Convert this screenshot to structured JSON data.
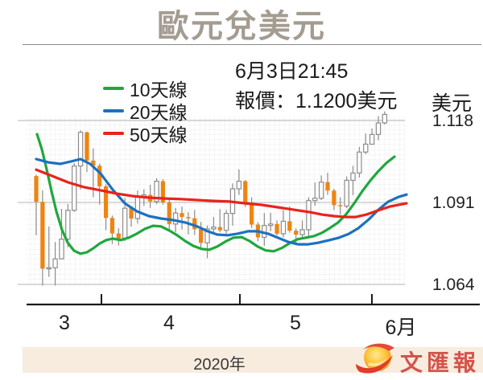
{
  "title": "歐元兌美元",
  "info": {
    "line1": "6月3日21:45",
    "line2": "報價：1.1200美元"
  },
  "unit_label": "美元",
  "legend": {
    "items": [
      {
        "label": "10天線",
        "color": "#1fa83c"
      },
      {
        "label": "20天線",
        "color": "#1c70c0"
      },
      {
        "label": "50天線",
        "color": "#e8231d"
      }
    ]
  },
  "y_axis": {
    "labels": [
      "1.118",
      "1.091",
      "1.064"
    ]
  },
  "x_axis": {
    "labels": [
      "3",
      "4",
      "5",
      "6月"
    ]
  },
  "footer": {
    "year": "2020年",
    "logo_text": "文匯報"
  },
  "chart_data": {
    "type": "candlestick",
    "title": "EUR/USD daily with 10/20/50-day moving averages",
    "ylabel": "USD per EUR",
    "ylim": [
      1.058,
      1.122
    ],
    "yticks": [
      1.118,
      1.091,
      1.064
    ],
    "xtick_month_boundaries": [
      "4/1",
      "5/1",
      "6/1"
    ],
    "colors": {
      "up": "#ffffff",
      "up_border": "#8c8c8c",
      "down": "#ee8411",
      "wick": "#8c8c8c",
      "ma10": "#1fa83c",
      "ma20": "#1c70c0",
      "ma50": "#e8231d",
      "grid_fine": "#ebebeb",
      "grid_major": "#b5b5b5",
      "axis": "#1a1a1a"
    },
    "candles": [
      [
        "3/18",
        1.0997,
        1.1001,
        1.0802,
        1.0912
      ],
      [
        "3/19",
        1.0912,
        1.095,
        1.0636,
        1.0692
      ],
      [
        "3/20",
        1.0692,
        1.0831,
        1.0665,
        1.0695
      ],
      [
        "3/23",
        1.0695,
        1.078,
        1.0636,
        1.0724
      ],
      [
        "3/24",
        1.0724,
        1.0889,
        1.0723,
        1.0789
      ],
      [
        "3/25",
        1.0789,
        1.0905,
        1.0762,
        1.0884
      ],
      [
        "3/26",
        1.0884,
        1.104,
        1.0879,
        1.103
      ],
      [
        "3/27",
        1.103,
        1.1148,
        1.0953,
        1.1141
      ],
      [
        "3/30",
        1.1141,
        1.1144,
        1.101,
        1.1048
      ],
      [
        "3/31",
        1.1048,
        1.1088,
        1.0927,
        1.1031
      ],
      [
        "4/1",
        1.1031,
        1.1038,
        1.0903,
        1.0963
      ],
      [
        "4/2",
        1.0963,
        1.097,
        1.0819,
        1.0859
      ],
      [
        "4/3",
        1.0859,
        1.0867,
        1.0773,
        1.0808
      ],
      [
        "4/6",
        1.0808,
        1.0825,
        1.0768,
        1.0791
      ],
      [
        "4/7",
        1.0791,
        1.0925,
        1.0783,
        1.0891
      ],
      [
        "4/8",
        1.0891,
        1.0898,
        1.083,
        1.0857
      ],
      [
        "4/9",
        1.0857,
        1.095,
        1.084,
        1.093
      ],
      [
        "4/10",
        1.093,
        1.0953,
        1.0899,
        1.0935
      ],
      [
        "4/13",
        1.0935,
        1.0968,
        1.0892,
        1.0913
      ],
      [
        "4/14",
        1.0913,
        1.099,
        1.0905,
        1.098
      ],
      [
        "4/15",
        1.098,
        1.0987,
        1.0903,
        1.091
      ],
      [
        "4/16",
        1.091,
        1.092,
        1.0816,
        1.0839
      ],
      [
        "4/17",
        1.0839,
        1.0892,
        1.0812,
        1.0875
      ],
      [
        "4/20",
        1.0875,
        1.0897,
        1.0821,
        1.0862
      ],
      [
        "4/21",
        1.0862,
        1.0878,
        1.0805,
        1.0858
      ],
      [
        "4/22",
        1.0858,
        1.0885,
        1.0803,
        1.0822
      ],
      [
        "4/23",
        1.0822,
        1.0846,
        1.0756,
        1.0777
      ],
      [
        "4/24",
        1.0777,
        1.0834,
        1.0726,
        1.0823
      ],
      [
        "4/27",
        1.0823,
        1.0862,
        1.081,
        1.0829
      ],
      [
        "4/28",
        1.0829,
        1.0888,
        1.0812,
        1.0818
      ],
      [
        "4/29",
        1.0818,
        1.0885,
        1.0807,
        1.0874
      ],
      [
        "4/30",
        1.0874,
        1.0973,
        1.0833,
        1.0955
      ],
      [
        "5/1",
        1.0955,
        1.1019,
        1.0935,
        1.098
      ],
      [
        "5/4",
        1.098,
        1.0984,
        1.0895,
        1.0907
      ],
      [
        "5/5",
        1.0907,
        1.0927,
        1.0826,
        1.0837
      ],
      [
        "5/6",
        1.0837,
        1.0845,
        1.0782,
        1.0795
      ],
      [
        "5/7",
        1.0795,
        1.0875,
        1.0767,
        1.0834
      ],
      [
        "5/8",
        1.0834,
        1.0876,
        1.0815,
        1.0839
      ],
      [
        "5/11",
        1.0839,
        1.0851,
        1.0801,
        1.0807
      ],
      [
        "5/12",
        1.0807,
        1.0885,
        1.0795,
        1.0848
      ],
      [
        "5/13",
        1.0848,
        1.0897,
        1.081,
        1.0817
      ],
      [
        "5/14",
        1.0817,
        1.0825,
        1.0774,
        1.0804
      ],
      [
        "5/15",
        1.0804,
        1.0851,
        1.0789,
        1.082
      ],
      [
        "5/18",
        1.082,
        1.0927,
        1.0797,
        1.0916
      ],
      [
        "5/19",
        1.0916,
        1.0976,
        1.0899,
        1.0924
      ],
      [
        "5/20",
        1.0924,
        1.0999,
        1.0918,
        1.0977
      ],
      [
        "5/21",
        1.0977,
        1.1008,
        1.0935,
        1.0949
      ],
      [
        "5/22",
        1.0949,
        1.0955,
        1.0885,
        1.0901
      ],
      [
        "5/25",
        1.0901,
        1.0927,
        1.087,
        1.0898
      ],
      [
        "5/26",
        1.0898,
        1.0996,
        1.0891,
        1.0983
      ],
      [
        "5/27",
        1.0983,
        1.1031,
        1.0934,
        1.1007
      ],
      [
        "5/28",
        1.1007,
        1.1093,
        1.0992,
        1.1076
      ],
      [
        "5/29",
        1.1076,
        1.1137,
        1.1069,
        1.1102
      ],
      [
        "6/1",
        1.1102,
        1.1154,
        1.1101,
        1.1134
      ],
      [
        "6/2",
        1.1134,
        1.1195,
        1.1115,
        1.1172
      ],
      [
        "6/3",
        1.1172,
        1.121,
        1.1167,
        1.12
      ]
    ],
    "ma_series": [
      {
        "name": "10天線",
        "color": "#1fa83c",
        "points": [
          [
            46,
            1.1135
          ],
          [
            52,
            1.1085
          ],
          [
            58,
            1.1019
          ],
          [
            64,
            1.0947
          ],
          [
            70,
            1.0881
          ],
          [
            77,
            1.082
          ],
          [
            84,
            1.0778
          ],
          [
            92,
            1.0751
          ],
          [
            100,
            1.0741
          ],
          [
            108,
            1.0746
          ],
          [
            116,
            1.0759
          ],
          [
            124,
            1.0775
          ],
          [
            132,
            1.0786
          ],
          [
            140,
            1.0791
          ],
          [
            150,
            1.0786
          ],
          [
            160,
            1.0794
          ],
          [
            170,
            1.0807
          ],
          [
            180,
            1.0823
          ],
          [
            190,
            1.0833
          ],
          [
            200,
            1.0831
          ],
          [
            210,
            1.0818
          ],
          [
            220,
            1.0802
          ],
          [
            230,
            1.0783
          ],
          [
            240,
            1.0767
          ],
          [
            250,
            1.0757
          ],
          [
            260,
            1.0754
          ],
          [
            270,
            1.0765
          ],
          [
            280,
            1.0781
          ],
          [
            290,
            1.0794
          ],
          [
            300,
            1.0796
          ],
          [
            310,
            1.0783
          ],
          [
            320,
            1.0765
          ],
          [
            330,
            1.0752
          ],
          [
            340,
            1.0749
          ],
          [
            350,
            1.076
          ],
          [
            360,
            1.0776
          ],
          [
            370,
            1.0789
          ],
          [
            380,
            1.0794
          ],
          [
            390,
            1.0799
          ],
          [
            400,
            1.081
          ],
          [
            410,
            1.0826
          ],
          [
            420,
            1.0844
          ],
          [
            430,
            1.0871
          ],
          [
            440,
            1.0907
          ],
          [
            450,
            1.0947
          ],
          [
            460,
            1.0982
          ],
          [
            470,
            1.1013
          ],
          [
            480,
            1.104
          ],
          [
            490,
            1.1061
          ]
        ]
      },
      {
        "name": "20天線",
        "color": "#1c70c0",
        "points": [
          [
            45,
            1.1053
          ],
          [
            60,
            1.1042
          ],
          [
            75,
            1.1037
          ],
          [
            88,
            1.1045
          ],
          [
            100,
            1.1053
          ],
          [
            112,
            1.1037
          ],
          [
            125,
            1.1005
          ],
          [
            140,
            1.0952
          ],
          [
            155,
            1.0907
          ],
          [
            170,
            1.0881
          ],
          [
            185,
            1.0865
          ],
          [
            200,
            1.0857
          ],
          [
            215,
            1.0852
          ],
          [
            230,
            1.0844
          ],
          [
            245,
            1.0831
          ],
          [
            258,
            1.0815
          ],
          [
            270,
            1.0804
          ],
          [
            283,
            1.0802
          ],
          [
            295,
            1.0807
          ],
          [
            308,
            1.0815
          ],
          [
            320,
            1.0815
          ],
          [
            333,
            1.0807
          ],
          [
            345,
            1.0794
          ],
          [
            358,
            1.078
          ],
          [
            370,
            1.0772
          ],
          [
            383,
            1.0772
          ],
          [
            395,
            1.0777
          ],
          [
            408,
            1.0785
          ],
          [
            420,
            1.0793
          ],
          [
            433,
            1.0806
          ],
          [
            445,
            1.0825
          ],
          [
            458,
            1.0854
          ],
          [
            470,
            1.0886
          ],
          [
            482,
            1.0912
          ],
          [
            495,
            1.0928
          ],
          [
            505,
            1.0936
          ]
        ]
      },
      {
        "name": "50天線",
        "color": "#e8231d",
        "points": [
          [
            45,
            1.1018
          ],
          [
            65,
            1.0997
          ],
          [
            85,
            1.0976
          ],
          [
            105,
            1.096
          ],
          [
            125,
            1.095
          ],
          [
            145,
            1.0939
          ],
          [
            165,
            1.0931
          ],
          [
            185,
            1.0926
          ],
          [
            205,
            1.0923
          ],
          [
            225,
            1.0921
          ],
          [
            245,
            1.0918
          ],
          [
            265,
            1.0915
          ],
          [
            285,
            1.0913
          ],
          [
            305,
            1.0907
          ],
          [
            325,
            1.0902
          ],
          [
            345,
            1.0894
          ],
          [
            365,
            1.0886
          ],
          [
            385,
            1.0878
          ],
          [
            400,
            1.087
          ],
          [
            415,
            1.0865
          ],
          [
            430,
            1.0862
          ],
          [
            442,
            1.0862
          ],
          [
            455,
            1.087
          ],
          [
            470,
            1.0884
          ],
          [
            485,
            1.0897
          ],
          [
            505,
            1.0907
          ]
        ]
      }
    ]
  }
}
